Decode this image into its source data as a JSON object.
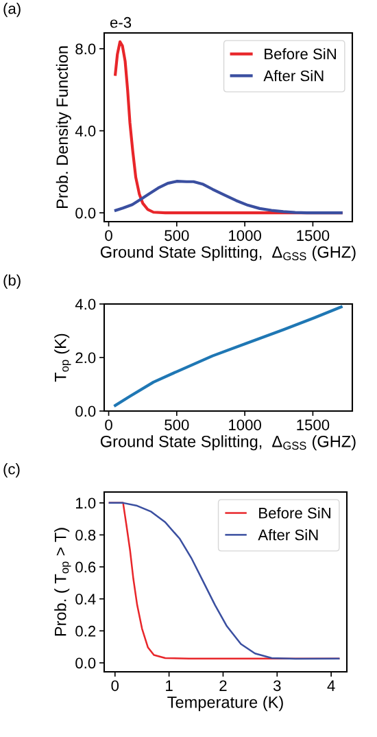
{
  "chart_data": [
    {
      "type": "line",
      "xlabel": "Ground State Splitting,  Δ$_{GSS}$ (GHZ)",
      "ylabel": "Prob. Density Function",
      "annotations": [
        "(a)",
        "e-3"
      ],
      "xlim": [
        -33,
        1790
      ],
      "xticks": [
        0,
        500,
        1000,
        1500
      ],
      "ylim": [
        -0.43,
        8.77
      ],
      "yticks": [
        {
          "value": 0,
          "label": "0.0"
        },
        {
          "value": 4,
          "label": "4.0"
        },
        {
          "value": 8,
          "label": "8.0"
        }
      ],
      "legend": "top right",
      "grid": false,
      "series": [
        {
          "name": "Before SiN",
          "color": "#e8262a",
          "x": [
            48.5,
            64,
            83,
            101,
            121,
            139,
            156,
            177,
            199,
            225,
            251,
            286,
            329,
            416,
            700,
            1000,
            1300,
            1708
          ],
          "values": [
            6.75,
            7.73,
            8.34,
            8.14,
            7.39,
            6.0,
            4.39,
            3.0,
            1.73,
            0.92,
            0.46,
            0.17,
            0.03,
            0,
            0,
            0,
            0,
            0
          ]
        },
        {
          "name": "After SiN",
          "color": "#3a4fa0",
          "x": [
            52,
            104,
            173,
            243,
            295,
            364,
            434,
            503,
            572,
            624,
            694,
            763,
            850,
            936,
            1023,
            1110,
            1196,
            1283,
            1370,
            1457,
            1708
          ],
          "values": [
            0.12,
            0.23,
            0.4,
            0.69,
            0.92,
            1.21,
            1.44,
            1.54,
            1.52,
            1.52,
            1.39,
            1.15,
            0.87,
            0.6,
            0.37,
            0.21,
            0.12,
            0.06,
            0.02,
            0,
            0
          ]
        }
      ]
    },
    {
      "type": "line",
      "xlabel": "Ground State Splitting,  Δ$_{GSS}$ (GHZ)",
      "ylabel": "T$_{op}$ (K)",
      "annotations": [
        "(b)"
      ],
      "xlim": [
        -33,
        1790
      ],
      "xticks": [
        0,
        500,
        1000,
        1500
      ],
      "ylim": [
        0,
        4
      ],
      "yticks": [
        {
          "value": 0,
          "label": "0.0"
        },
        {
          "value": 2,
          "label": "2.0"
        },
        {
          "value": 4,
          "label": "4.0"
        }
      ],
      "grid": false,
      "series": [
        {
          "color": "#1f77b4",
          "x": [
            48.5,
            156,
            329,
            503,
            763,
            1006,
            1283,
            1509,
            1708
          ],
          "values": [
            0.21,
            0.55,
            1.08,
            1.48,
            2.06,
            2.52,
            3.04,
            3.48,
            3.89
          ]
        }
      ]
    },
    {
      "type": "line",
      "xlabel": "Temperature (K)",
      "ylabel": "Prob. ( T$_{op}$ > T)",
      "annotations": [
        "(c)"
      ],
      "xlim": [
        -0.2,
        4.29
      ],
      "xticks": [
        0,
        1,
        2,
        3,
        4
      ],
      "ylim": [
        -0.056,
        1.068
      ],
      "yticks": [
        {
          "value": 0,
          "label": "0.0"
        },
        {
          "value": 0.2,
          "label": "0.2"
        },
        {
          "value": 0.4,
          "label": "0.4"
        },
        {
          "value": 0.6,
          "label": "0.6"
        },
        {
          "value": 0.8,
          "label": "0.8"
        },
        {
          "value": 1,
          "label": "1.0"
        }
      ],
      "legend": "top right",
      "grid": false,
      "series": [
        {
          "name": "Before SiN",
          "color": "#e8262a",
          "x": [
            -0.1,
            0.15,
            0.21,
            0.28,
            0.34,
            0.41,
            0.5,
            0.61,
            0.72,
            0.93,
            1.37,
            4.14
          ],
          "values": [
            1.0,
            1.0,
            0.864,
            0.7,
            0.524,
            0.362,
            0.214,
            0.096,
            0.049,
            0.03,
            0.027,
            0.027
          ]
        },
        {
          "name": "After SiN",
          "color": "#3a4fa0",
          "x": [
            -0.1,
            0.15,
            0.41,
            0.67,
            0.93,
            1.2,
            1.41,
            1.63,
            1.85,
            2.07,
            2.33,
            2.59,
            2.9,
            3.34,
            4.14
          ],
          "values": [
            1.0,
            1.0,
            0.982,
            0.945,
            0.879,
            0.775,
            0.657,
            0.51,
            0.362,
            0.229,
            0.118,
            0.059,
            0.03,
            0.025,
            0.027
          ]
        }
      ]
    }
  ]
}
